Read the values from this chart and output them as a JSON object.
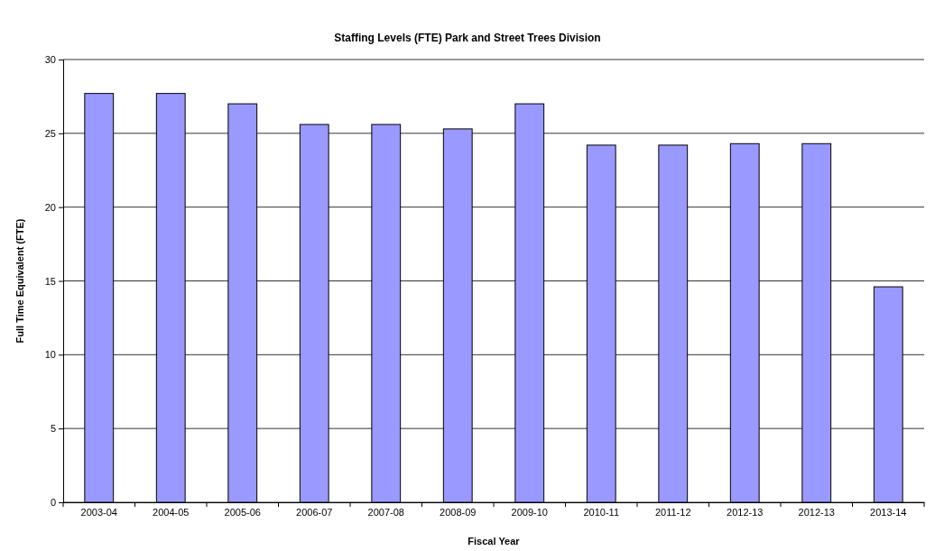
{
  "chart_data": {
    "type": "bar",
    "title": "Staffing Levels (FTE) Park and Street Trees Division",
    "xlabel": "Fiscal Year",
    "ylabel": "Full Time Equivalent (FTE)",
    "categories": [
      "2003-04",
      "2004-05",
      "2005-06",
      "2006-07",
      "2007-08",
      "2008-09",
      "2009-10",
      "2010-11",
      "2011-12",
      "2012-13",
      "2012-13",
      "2013-14"
    ],
    "values": [
      27.7,
      27.7,
      27.0,
      25.6,
      25.6,
      25.3,
      27.0,
      24.2,
      24.2,
      24.3,
      24.3,
      14.6
    ],
    "color": "#9999ff",
    "ylim": [
      0,
      30
    ],
    "yticks": [
      0,
      5,
      10,
      15,
      20,
      25,
      30
    ],
    "grid": "y"
  }
}
